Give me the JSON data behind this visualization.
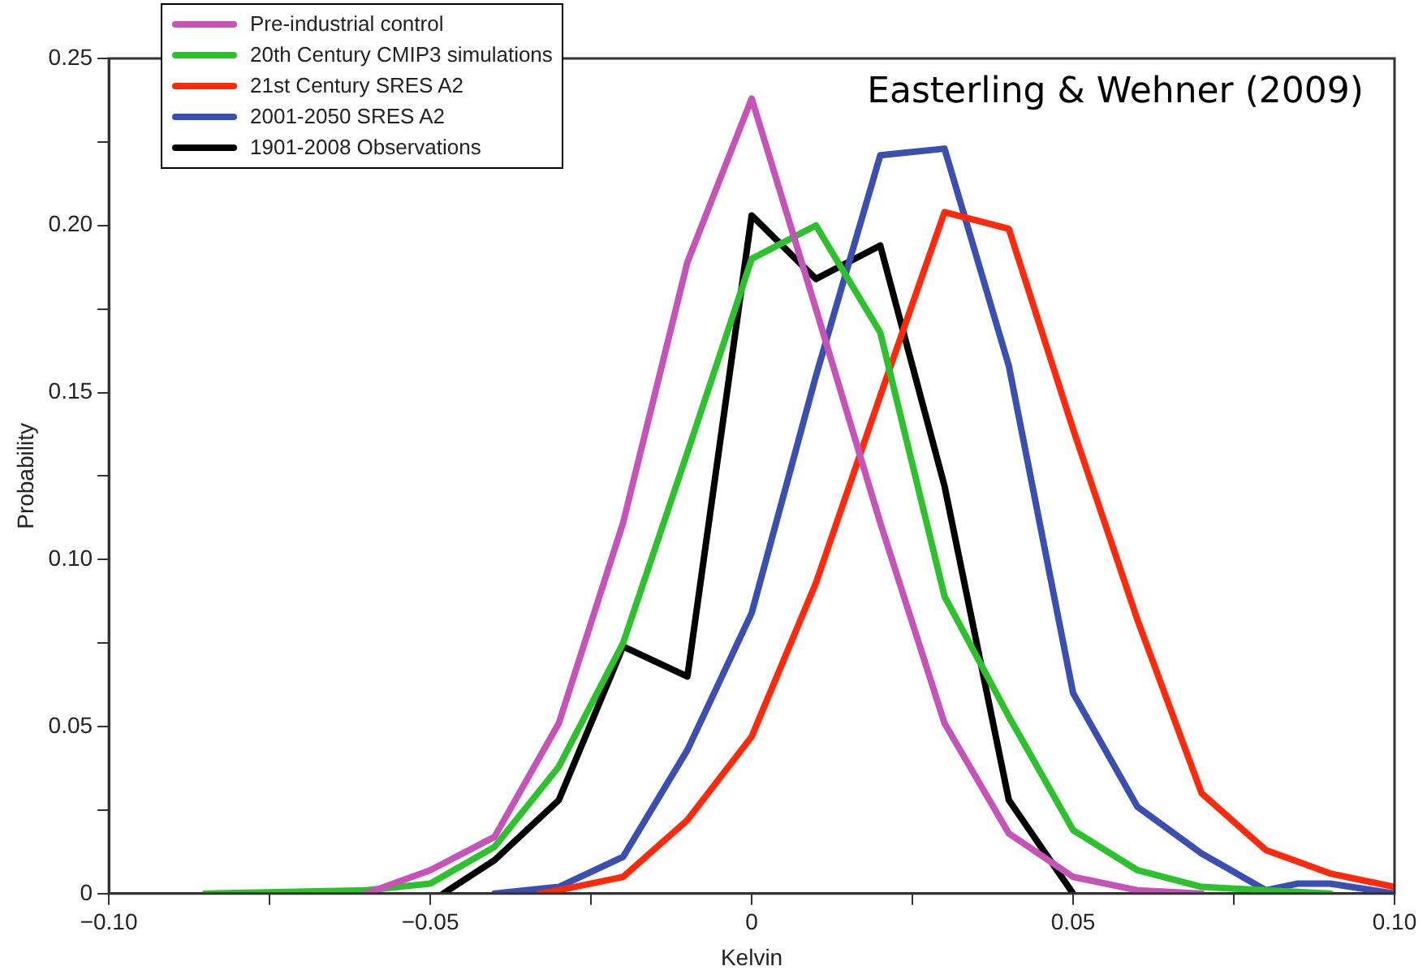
{
  "chart_data": {
    "type": "line",
    "xlabel": "Kelvin",
    "ylabel": "Probability",
    "annotations": [
      "Easterling & Wehner (2009)"
    ],
    "xlim": [
      -0.1,
      0.1
    ],
    "xticks": [
      {
        "value": -0.1,
        "label": "−0.10"
      },
      {
        "value": -0.075,
        "label": null
      },
      {
        "value": -0.05,
        "label": "−0.05"
      },
      {
        "value": -0.025,
        "label": null
      },
      {
        "value": 0,
        "label": "0"
      },
      {
        "value": 0.025,
        "label": null
      },
      {
        "value": 0.05,
        "label": "0.05"
      },
      {
        "value": 0.075,
        "label": null
      },
      {
        "value": 0.1,
        "label": "0.10"
      }
    ],
    "ylim": [
      0,
      0.25
    ],
    "yticks": [
      {
        "value": 0,
        "label": "0"
      },
      {
        "value": 0.025,
        "label": null
      },
      {
        "value": 0.05,
        "label": "0.05"
      },
      {
        "value": 0.075,
        "label": null
      },
      {
        "value": 0.1,
        "label": "0.10"
      },
      {
        "value": 0.125,
        "label": null
      },
      {
        "value": 0.15,
        "label": "0.15"
      },
      {
        "value": 0.175,
        "label": null
      },
      {
        "value": 0.2,
        "label": "0.20"
      },
      {
        "value": 0.225,
        "label": null
      },
      {
        "value": 0.25,
        "label": "0.25"
      }
    ],
    "grid": false,
    "legend": "top left",
    "marker": "none",
    "line_style": "solid",
    "series": [
      {
        "name": "Pre-industrial control",
        "color": "#c653b8",
        "x": [
          -0.06,
          -0.05,
          -0.04,
          -0.03,
          -0.02,
          -0.01,
          0,
          0.01,
          0.02,
          0.03,
          0.04,
          0.05,
          0.06,
          0.07
        ],
        "values": [
          0,
          0.007,
          0.017,
          0.051,
          0.111,
          0.189,
          0.238,
          0.175,
          0.111,
          0.051,
          0.018,
          0.005,
          0.001,
          0
        ]
      },
      {
        "name": "20th Century CMIP3 simulations",
        "color": "#2dc12d",
        "x": [
          -0.085,
          -0.06,
          -0.05,
          -0.04,
          -0.03,
          -0.02,
          -0.01,
          0,
          0.01,
          0.02,
          0.03,
          0.04,
          0.05,
          0.06,
          0.07,
          0.08,
          0.09
        ],
        "values": [
          0,
          0.001,
          0.003,
          0.014,
          0.038,
          0.075,
          0.132,
          0.19,
          0.2,
          0.168,
          0.089,
          0.053,
          0.019,
          0.007,
          0.002,
          0.001,
          0
        ]
      },
      {
        "name": "21st Century SRES A2",
        "color": "#ff2a0c",
        "x": [
          -0.033,
          -0.03,
          -0.02,
          -0.01,
          0,
          0.01,
          0.02,
          0.03,
          0.04,
          0.05,
          0.06,
          0.07,
          0.08,
          0.09,
          0.1
        ],
        "values": [
          0,
          0.001,
          0.005,
          0.022,
          0.047,
          0.093,
          0.149,
          0.204,
          0.199,
          0.139,
          0.082,
          0.03,
          0.013,
          0.006,
          0.002
        ]
      },
      {
        "name": "2001-2050 SRES A2",
        "color": "#3b4fb0",
        "x": [
          -0.04,
          -0.03,
          -0.02,
          -0.01,
          0,
          0.01,
          0.02,
          0.03,
          0.04,
          0.05,
          0.06,
          0.07,
          0.08,
          0.085,
          0.09,
          0.1
        ],
        "values": [
          0,
          0.002,
          0.011,
          0.043,
          0.084,
          0.155,
          0.221,
          0.223,
          0.158,
          0.06,
          0.026,
          0.012,
          0.001,
          0.003,
          0.003,
          0
        ]
      },
      {
        "name": "1901-2008 Observations",
        "color": "#000000",
        "x": [
          -0.048,
          -0.04,
          -0.03,
          -0.02,
          -0.01,
          0,
          0.01,
          0.02,
          0.03,
          0.04,
          0.05
        ],
        "values": [
          0,
          0.01,
          0.028,
          0.074,
          0.065,
          0.203,
          0.184,
          0.194,
          0.122,
          0.028,
          0
        ]
      }
    ]
  }
}
